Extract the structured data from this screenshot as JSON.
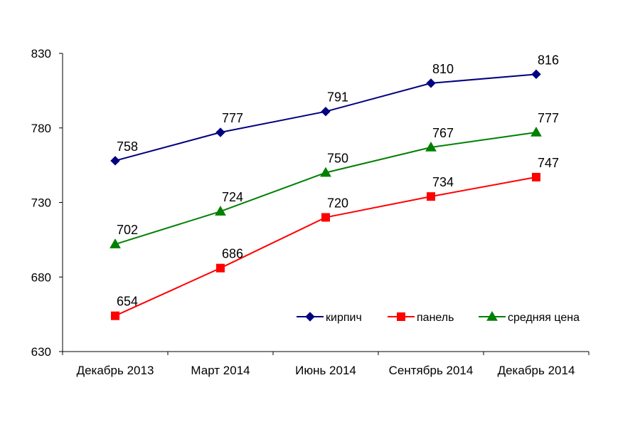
{
  "chart_data": {
    "type": "line",
    "title": "",
    "xlabel": "",
    "ylabel": "",
    "categories": [
      "Декабрь 2013",
      "Март 2014",
      "Июнь 2014",
      "Сентябрь 2014",
      "Декабрь 2014"
    ],
    "ylim": [
      630,
      830
    ],
    "yticks": [
      630,
      680,
      730,
      780,
      830
    ],
    "grid": false,
    "legend_position": "bottom-right",
    "series": [
      {
        "name": "кирпич",
        "values": [
          758,
          777,
          791,
          810,
          816
        ],
        "color": "#000080",
        "marker": "diamond"
      },
      {
        "name": "панель",
        "values": [
          654,
          686,
          720,
          734,
          747
        ],
        "color": "#ff0000",
        "marker": "square"
      },
      {
        "name": "средняя цена",
        "values": [
          702,
          724,
          750,
          767,
          777
        ],
        "color": "#008000",
        "marker": "triangle"
      }
    ]
  }
}
